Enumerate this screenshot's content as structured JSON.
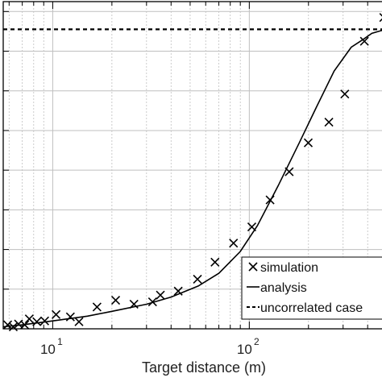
{
  "chart_data": {
    "type": "line",
    "xlabel": "Target distance (m)",
    "ylabel": "",
    "xscale": "log",
    "xlim": [
      5.6,
      520
    ],
    "ylim": [
      0,
      8.25
    ],
    "x_tick_labels": [
      {
        "base": "10",
        "exp": "1",
        "value": 10
      },
      {
        "base": "10",
        "exp": "2",
        "value": 100
      }
    ],
    "grid": true,
    "legend_position": "bottom-right",
    "colors": {
      "line": "#000000",
      "marker": "#000000",
      "grid": "#bfbfbf",
      "axis": "#000000"
    },
    "series": [
      {
        "name": "simulation",
        "style": "marker-x",
        "points": [
          [
            5.9,
            0.1
          ],
          [
            6.3,
            0.05
          ],
          [
            6.7,
            0.12
          ],
          [
            7.2,
            0.1
          ],
          [
            7.6,
            0.25
          ],
          [
            8.3,
            0.18
          ],
          [
            9.1,
            0.2
          ],
          [
            10.4,
            0.36
          ],
          [
            12.3,
            0.3
          ],
          [
            13.6,
            0.18
          ],
          [
            16.8,
            0.55
          ],
          [
            20.9,
            0.72
          ],
          [
            25.9,
            0.62
          ],
          [
            32.2,
            0.68
          ],
          [
            35.3,
            0.85
          ],
          [
            43.5,
            0.95
          ],
          [
            54.5,
            1.25
          ],
          [
            66.9,
            1.68
          ],
          [
            83.1,
            2.16
          ],
          [
            103,
            2.57
          ],
          [
            127.5,
            3.25
          ],
          [
            159.6,
            3.96
          ],
          [
            199.5,
            4.69
          ],
          [
            254,
            5.21
          ],
          [
            306,
            5.92
          ],
          [
            385,
            7.25
          ],
          [
            483,
            7.85
          ]
        ]
      },
      {
        "name": "analysis",
        "style": "solid",
        "points": [
          [
            5.6,
            0.05
          ],
          [
            7,
            0.1
          ],
          [
            10,
            0.2
          ],
          [
            15,
            0.32
          ],
          [
            20,
            0.44
          ],
          [
            30,
            0.62
          ],
          [
            40,
            0.8
          ],
          [
            55,
            1.08
          ],
          [
            70,
            1.4
          ],
          [
            90,
            1.95
          ],
          [
            110,
            2.6
          ],
          [
            140,
            3.6
          ],
          [
            180,
            4.7
          ],
          [
            220,
            5.6
          ],
          [
            270,
            6.5
          ],
          [
            330,
            7.1
          ],
          [
            380,
            7.3
          ],
          [
            420,
            7.45
          ],
          [
            470,
            7.52
          ],
          [
            520,
            7.55
          ]
        ]
      },
      {
        "name": "uncorrelated case",
        "style": "dashed",
        "points": [
          [
            5.6,
            7.55
          ],
          [
            520,
            7.55
          ]
        ]
      }
    ]
  }
}
